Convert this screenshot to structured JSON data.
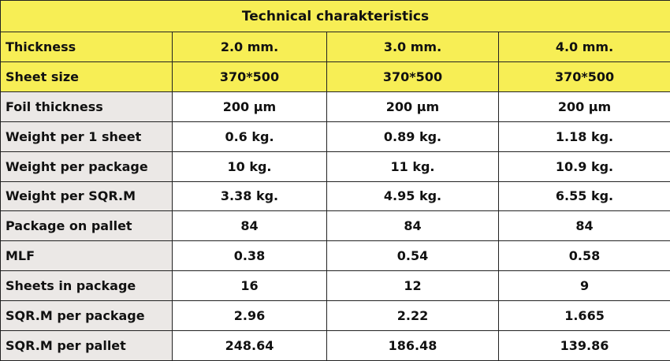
{
  "title": "Technical charakteristics",
  "table": {
    "rows": [
      [
        "Thickness",
        "2.0 mm.",
        "3.0 mm.",
        "4.0 mm."
      ],
      [
        "Sheet size",
        "370*500",
        "370*500",
        "370*500"
      ],
      [
        "Foil thickness",
        "200 µm",
        "200 µm",
        "200 µm"
      ],
      [
        "Weight per 1 sheet",
        "0.6 kg.",
        "0.89 kg.",
        "1.18 kg."
      ],
      [
        "Weight per package",
        "10 kg.",
        "11 kg.",
        "10.9 kg."
      ],
      [
        "Weight per SQR.M",
        "3.38 kg.",
        "4.95 kg.",
        "6.55 kg."
      ],
      [
        "Package on pallet",
        "84",
        "84",
        "84"
      ],
      [
        "MLF",
        "0.38",
        "0.54",
        "0.58"
      ],
      [
        "Sheets in package",
        "16",
        "12",
        "9"
      ],
      [
        "SQR.M per package",
        "2.96",
        "2.22",
        "1.665"
      ],
      [
        "SQR.M per pallet",
        "248.64",
        "186.48",
        "139.86"
      ]
    ]
  }
}
